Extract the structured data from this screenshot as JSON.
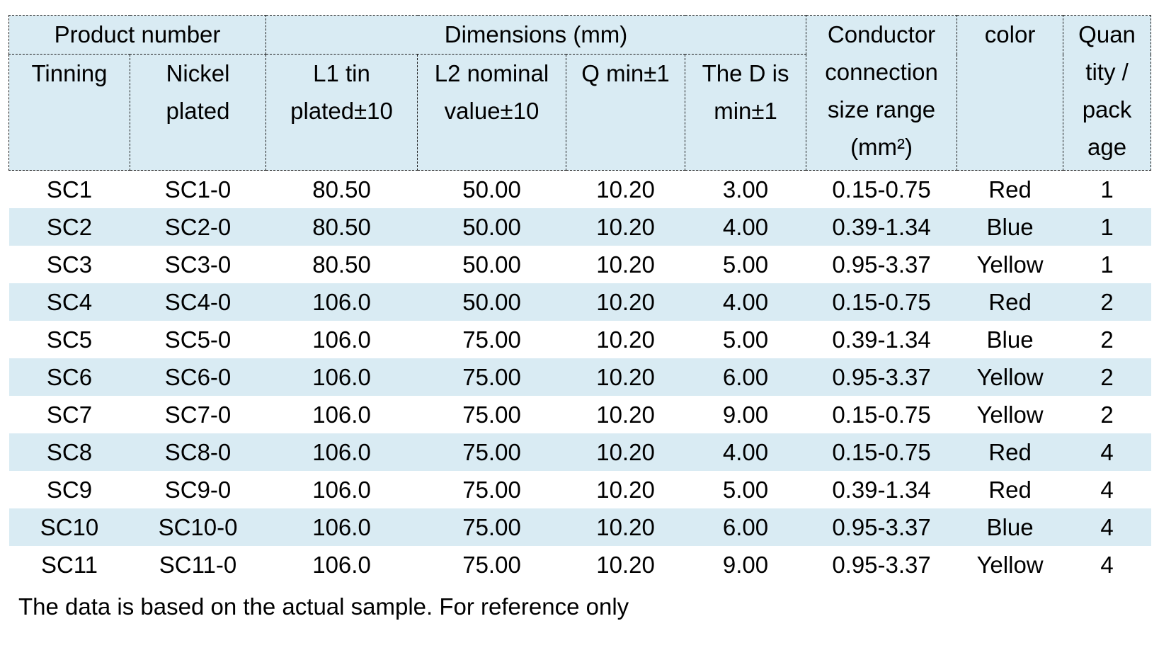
{
  "table": {
    "header": {
      "product_number": "Product number",
      "dimensions": "Dimensions (mm)",
      "tinning": "Tinning",
      "nickel_plated": "Nickel\nplated",
      "l1_tin_plated": "L1 tin\nplated±10",
      "l2_nominal_value": "L2 nominal\nvalue±10",
      "q_min": "Q min±1",
      "d_min": "The D is\nmin±1",
      "conductor_size_range": "Conductor\nconnection\nsize range\n(mm²)",
      "color": "color",
      "quantity_per_package": "Quan\ntity /\npack\nage"
    },
    "rows": [
      [
        "SC1",
        "SC1-0",
        "80.50",
        "50.00",
        "10.20",
        "3.00",
        "0.15-0.75",
        "Red",
        "1"
      ],
      [
        "SC2",
        "SC2-0",
        "80.50",
        "50.00",
        "10.20",
        "4.00",
        "0.39-1.34",
        "Blue",
        "1"
      ],
      [
        "SC3",
        "SC3-0",
        "80.50",
        "50.00",
        "10.20",
        "5.00",
        "0.95-3.37",
        "Yellow",
        "1"
      ],
      [
        "SC4",
        "SC4-0",
        "106.0",
        "50.00",
        "10.20",
        "4.00",
        "0.15-0.75",
        "Red",
        "2"
      ],
      [
        "SC5",
        "SC5-0",
        "106.0",
        "75.00",
        "10.20",
        "5.00",
        "0.39-1.34",
        "Blue",
        "2"
      ],
      [
        "SC6",
        "SC6-0",
        "106.0",
        "75.00",
        "10.20",
        "6.00",
        "0.95-3.37",
        "Yellow",
        "2"
      ],
      [
        "SC7",
        "SC7-0",
        "106.0",
        "75.00",
        "10.20",
        "9.00",
        "0.15-0.75",
        "Yellow",
        "2"
      ],
      [
        "SC8",
        "SC8-0",
        "106.0",
        "75.00",
        "10.20",
        "4.00",
        "0.15-0.75",
        "Red",
        "4"
      ],
      [
        "SC9",
        "SC9-0",
        "106.0",
        "75.00",
        "10.20",
        "5.00",
        "0.39-1.34",
        "Red",
        "4"
      ],
      [
        "SC10",
        "SC10-0",
        "106.0",
        "75.00",
        "10.20",
        "6.00",
        "0.95-3.37",
        "Blue",
        "4"
      ],
      [
        "SC11",
        "SC11-0",
        "106.0",
        "75.00",
        "10.20",
        "9.00",
        "0.95-3.37",
        "Yellow",
        "4"
      ]
    ]
  },
  "footer": {
    "note": "The data is based on the actual sample. For reference only"
  },
  "colors": {
    "header_bg": "#d9ebf3",
    "stripe_bg": "#d9ebf3",
    "border": "#1a1a1a",
    "text": "#000000",
    "page_bg": "#ffffff"
  }
}
